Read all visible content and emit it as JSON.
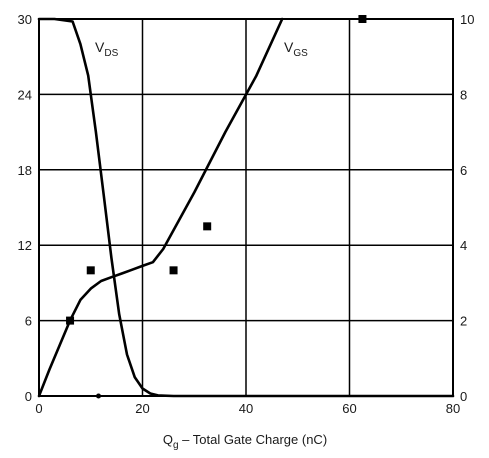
{
  "chart_data": {
    "type": "line",
    "xlabel": {
      "main": "Q",
      "sub": "g",
      "rest": " – Total Gate Charge (nC)"
    },
    "xlim": [
      0,
      80
    ],
    "x_ticks": [
      "0",
      "20",
      "40",
      "60",
      "80"
    ],
    "ylim_left": [
      0,
      30
    ],
    "y_left_ticks": [
      "0",
      "6",
      "12",
      "18",
      "24",
      "30"
    ],
    "ylim_right": [
      0,
      10
    ],
    "y_right_ticks": [
      "0",
      "2",
      "4",
      "6",
      "8",
      "10"
    ],
    "grid": true,
    "series": [
      {
        "name": "VDS",
        "label_main": "V",
        "label_sub": "DS",
        "axis": "left",
        "x": [
          0,
          3,
          6.5,
          8,
          9.5,
          11,
          12.5,
          14,
          15.5,
          17,
          18.5,
          20,
          21.5,
          23,
          26,
          30,
          40,
          60,
          80
        ],
        "y": [
          30,
          30,
          29.8,
          28,
          25.5,
          21,
          16,
          11,
          6.5,
          3.3,
          1.5,
          0.6,
          0.2,
          0.05,
          0,
          0,
          0,
          0,
          0
        ]
      },
      {
        "name": "VGS",
        "label_main": "V",
        "label_sub": "GS",
        "axis": "right",
        "x": [
          0,
          2,
          4,
          6,
          8,
          10,
          12,
          14,
          16,
          18,
          20,
          22,
          24,
          30,
          36,
          42,
          47
        ],
        "y": [
          0,
          0.7,
          1.35,
          2.0,
          2.55,
          2.85,
          3.05,
          3.15,
          3.25,
          3.35,
          3.45,
          3.55,
          3.9,
          5.4,
          7.0,
          8.5,
          10
        ]
      }
    ],
    "markers": [
      {
        "x": 6,
        "y": 6
      },
      {
        "x": 10,
        "y": 10
      },
      {
        "x": 26,
        "y": 10
      },
      {
        "x": 32.5,
        "y": 13.5
      },
      {
        "x": 62.5,
        "y": 30
      }
    ],
    "dots": [
      {
        "x": 11.5,
        "y": 0
      }
    ],
    "colors": {
      "line": "#000000",
      "grid": "#000000",
      "text": "#1a1a1a"
    }
  }
}
